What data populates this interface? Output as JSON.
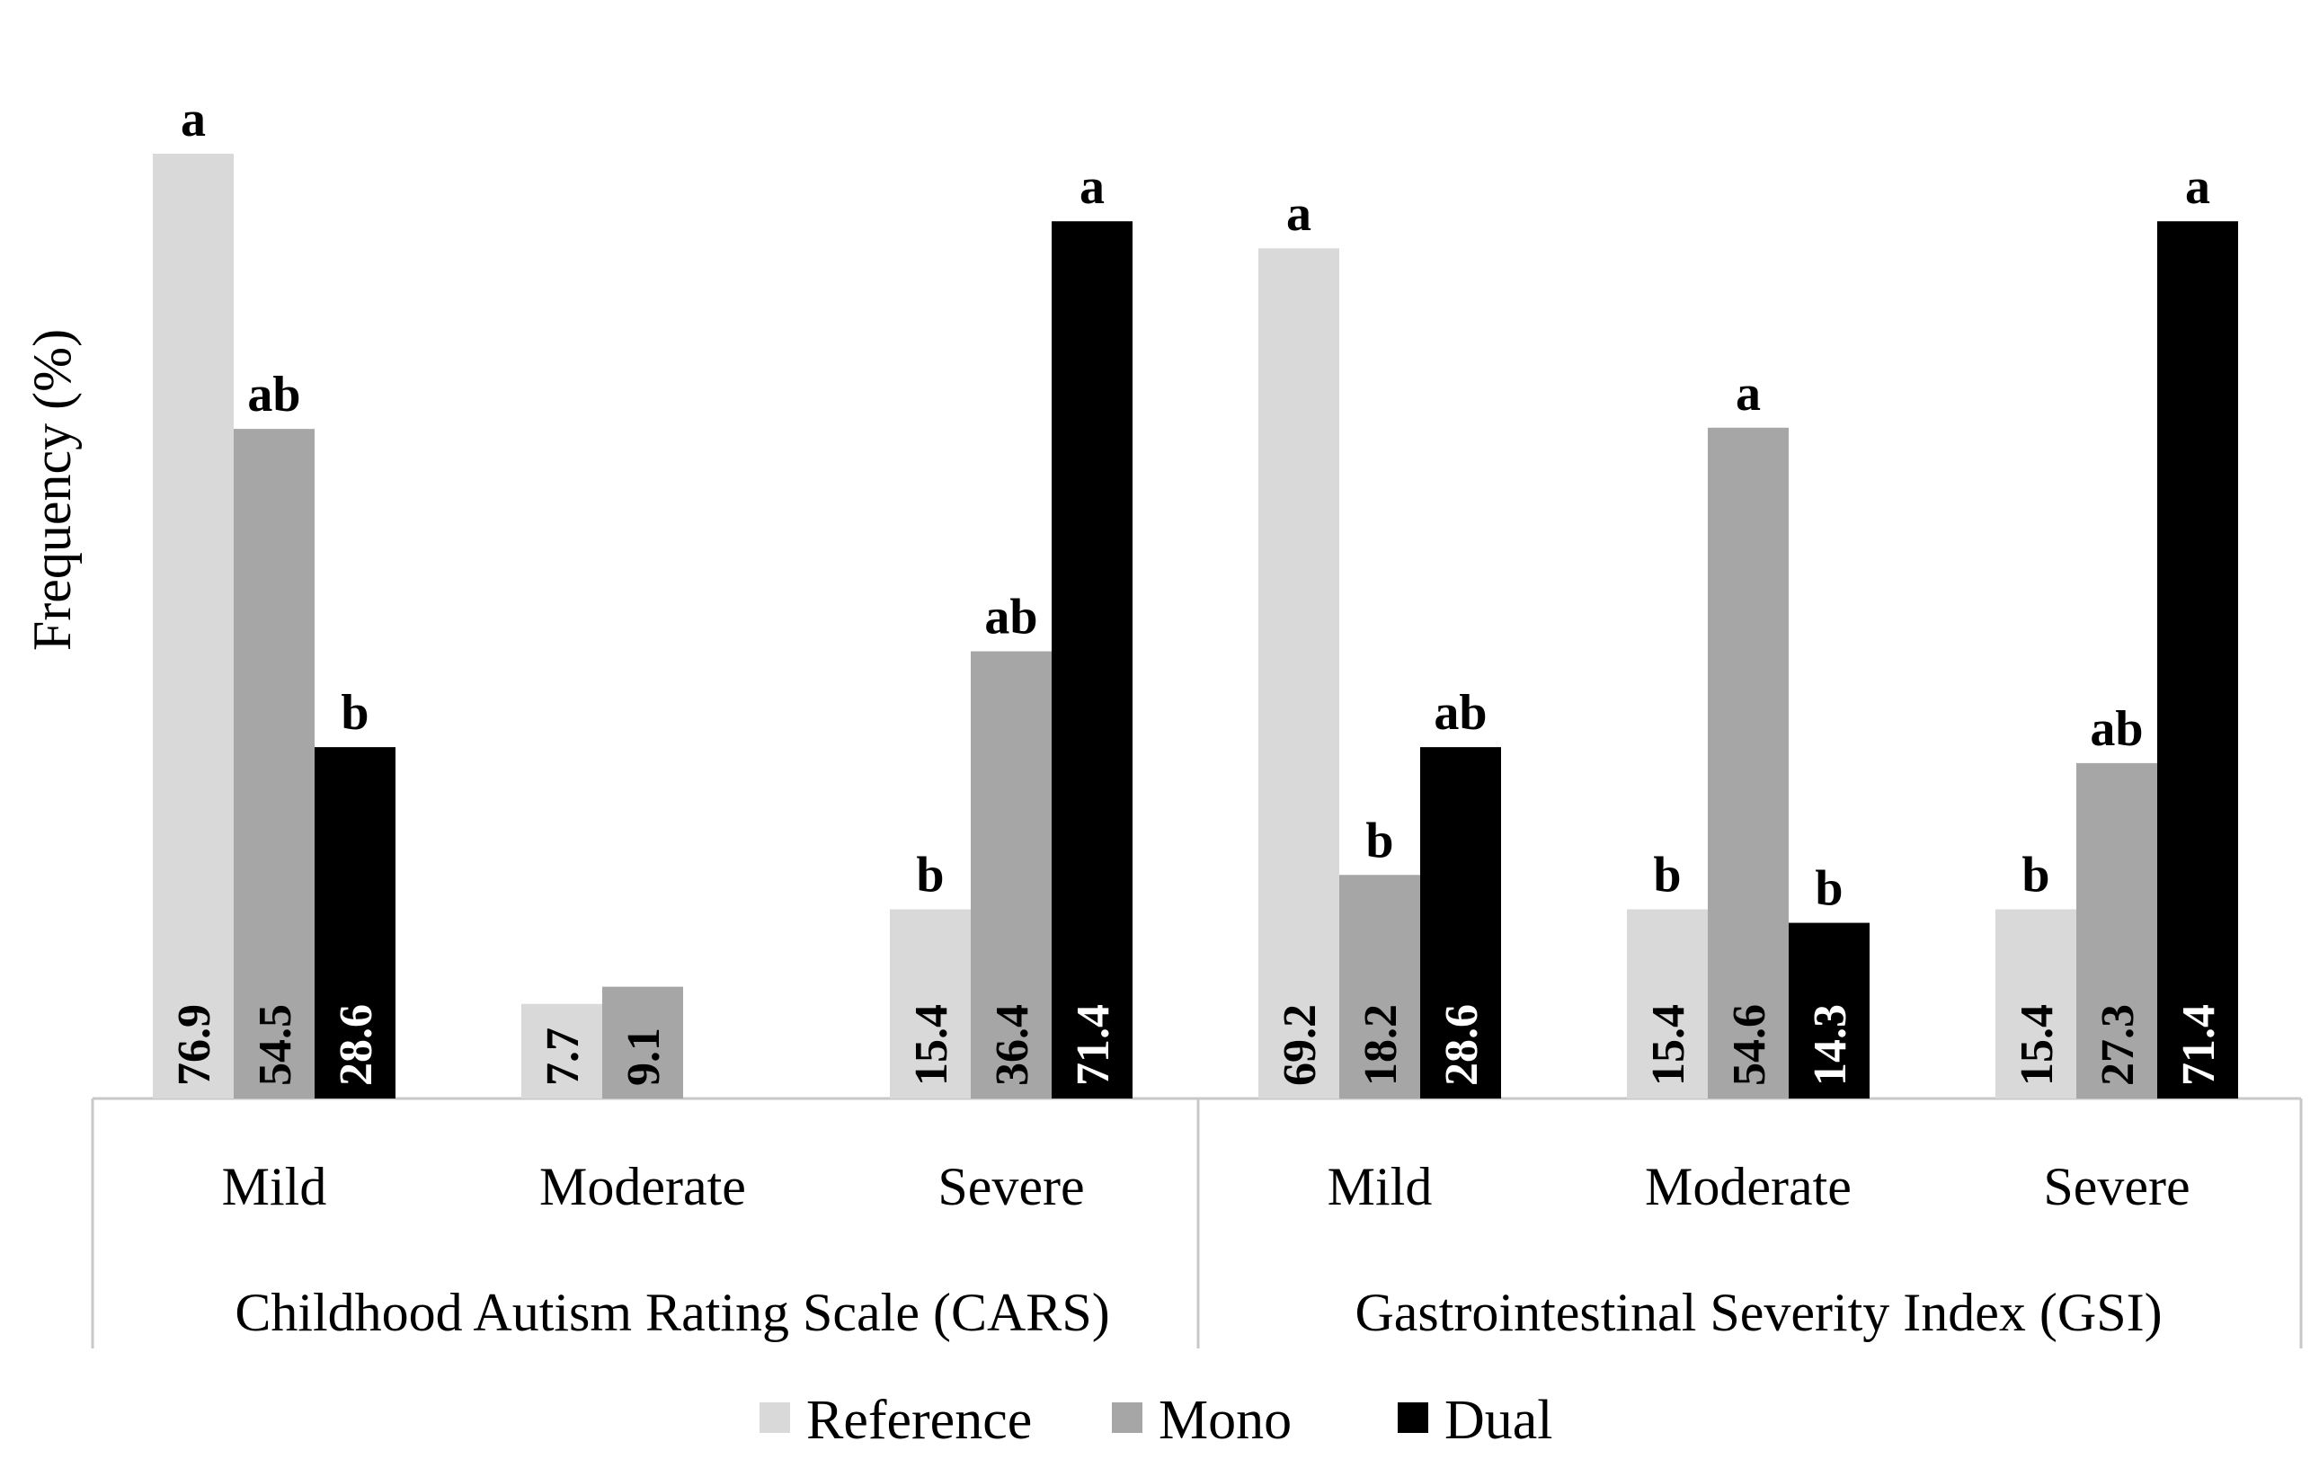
{
  "chart_data": {
    "type": "bar",
    "title": "",
    "ylabel": "Frequency (%)",
    "xlabel": "",
    "ylim": [
      0,
      80
    ],
    "grid": false,
    "legend_position": "bottom-center",
    "groups": [
      {
        "name": "Childhood Autism Rating Scale (CARS)",
        "categories": [
          "Mild",
          "Moderate",
          "Severe"
        ]
      },
      {
        "name": "Gastrointestinal Severity Index (GSI)",
        "categories": [
          "Mild",
          "Moderate",
          "Severe"
        ]
      }
    ],
    "series": [
      {
        "name": "Reference",
        "color": "#d9d9d9",
        "label_color": "#000000",
        "values": [
          76.9,
          7.7,
          15.4,
          69.2,
          15.4,
          15.4
        ],
        "value_labels": [
          "76.9",
          "7.7",
          "15.4",
          "69.2",
          "15.4",
          "15.4"
        ],
        "significance": [
          "a",
          "",
          "b",
          "a",
          "b",
          "b"
        ]
      },
      {
        "name": "Mono",
        "color": "#a6a6a6",
        "label_color": "#000000",
        "values": [
          54.5,
          9.1,
          36.4,
          18.2,
          54.6,
          27.3
        ],
        "value_labels": [
          "54.5",
          "9.1",
          "36.4",
          "18.2",
          "54.6",
          "27.3"
        ],
        "significance": [
          "ab",
          "",
          "ab",
          "b",
          "a",
          "ab"
        ]
      },
      {
        "name": "Dual",
        "color": "#000000",
        "label_color": "#ffffff",
        "values": [
          28.6,
          null,
          71.4,
          28.6,
          14.3,
          71.4
        ],
        "value_labels": [
          "28.6",
          "",
          "71.4",
          "28.6",
          "14.3",
          "71.4"
        ],
        "significance": [
          "b",
          "",
          "a",
          "ab",
          "b",
          "a"
        ]
      }
    ]
  }
}
